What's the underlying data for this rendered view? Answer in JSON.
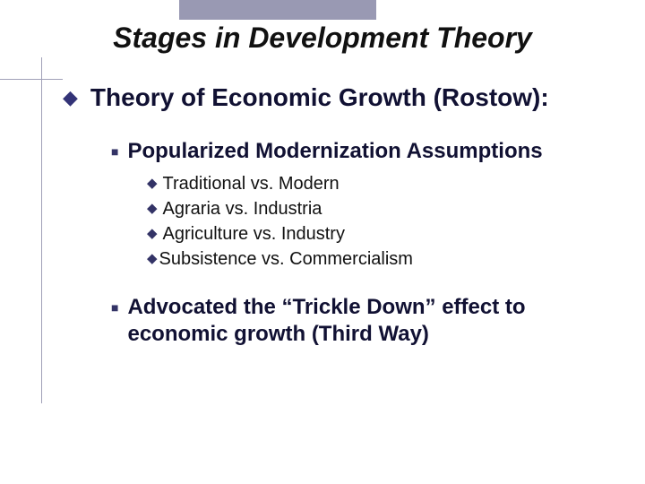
{
  "colors": {
    "header_bar": "#9999b3",
    "rule": "#a0a0b8",
    "title_text": "#111111",
    "bullet_diamond": "#333377",
    "bullet_square": "#333366",
    "bullet_smalldiamond": "#333366",
    "body_text": "#111133",
    "sub_text": "#111111",
    "background": "#ffffff"
  },
  "typography": {
    "title_fontsize": 32,
    "lvl1_fontsize": 28,
    "lvl2_fontsize": 24,
    "lvl3_fontsize": 20,
    "title_italic": true,
    "lvl1_bold": true,
    "lvl2_bold": true,
    "lvl3_bold": false
  },
  "title": "Stages in Development Theory",
  "bullets": {
    "lvl1": [
      {
        "text": "Theory of Economic Growth (Rostow):"
      }
    ],
    "lvl2": [
      {
        "text": "Popularized Modernization Assumptions",
        "lvl3": [
          {
            "text": " Traditional vs. Modern"
          },
          {
            "text": " Agraria vs. Industria"
          },
          {
            "text": " Agriculture vs. Industry"
          },
          {
            "text": "Subsistence vs. Commercialism",
            "tight": true
          }
        ]
      },
      {
        "text": "Advocated the “Trickle Down” effect to economic growth (Third Way)"
      }
    ]
  },
  "glyphs": {
    "diamond": "◆",
    "square": "■",
    "small_diamond": "◆"
  }
}
